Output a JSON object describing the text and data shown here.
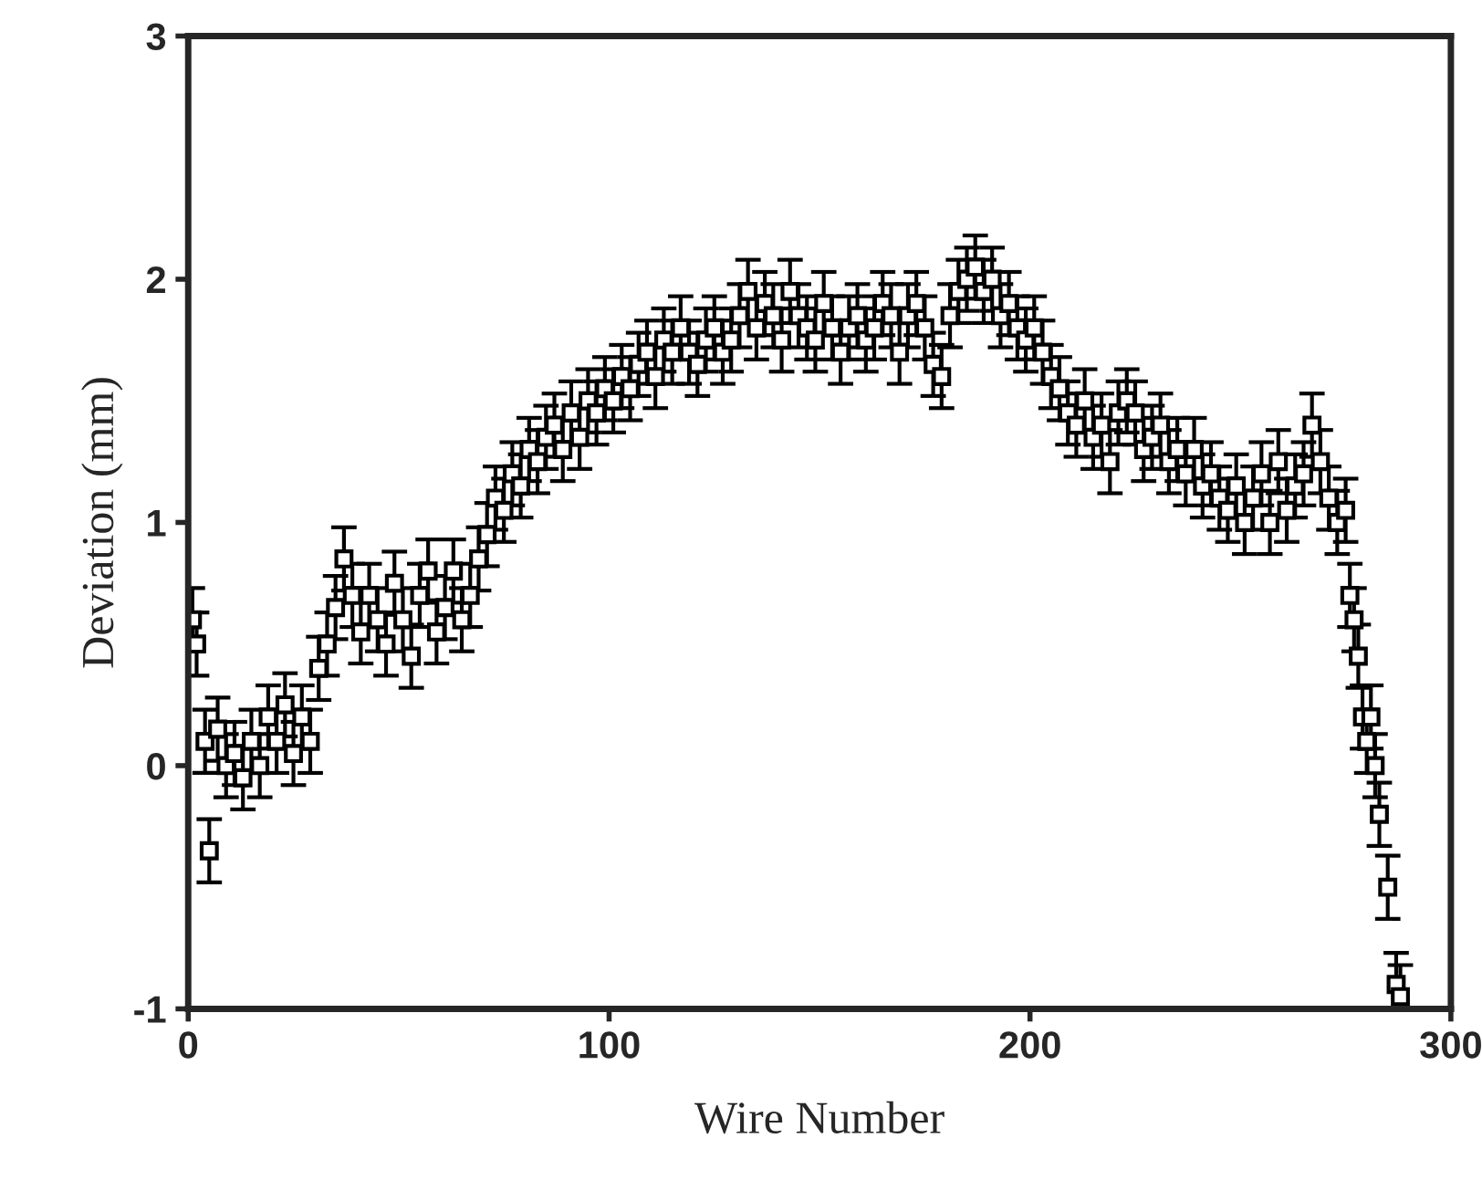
{
  "chart_data": {
    "type": "scatter",
    "xlabel": "Wire Number",
    "ylabel": "Deviation (mm)",
    "marker": "square",
    "xlim": [
      0,
      300
    ],
    "ylim": [
      -1,
      3
    ],
    "xticks": [
      0,
      100,
      200,
      300
    ],
    "yticks": [
      -1,
      0,
      1,
      2,
      3
    ],
    "x": [
      1,
      2,
      4,
      5,
      7,
      9,
      11,
      13,
      15,
      17,
      19,
      21,
      23,
      25,
      27,
      29,
      31,
      33,
      35,
      37,
      39,
      41,
      43,
      45,
      47,
      49,
      51,
      53,
      55,
      57,
      59,
      61,
      63,
      65,
      67,
      69,
      71,
      73,
      75,
      77,
      79,
      81,
      83,
      85,
      87,
      89,
      91,
      93,
      95,
      97,
      99,
      101,
      103,
      105,
      107,
      109,
      111,
      113,
      115,
      117,
      119,
      121,
      123,
      125,
      127,
      129,
      131,
      133,
      135,
      137,
      139,
      141,
      143,
      145,
      147,
      149,
      151,
      153,
      155,
      157,
      159,
      161,
      163,
      165,
      167,
      169,
      171,
      173,
      175,
      177,
      179,
      181,
      183,
      185,
      187,
      189,
      191,
      193,
      195,
      197,
      199,
      201,
      203,
      205,
      207,
      209,
      211,
      213,
      215,
      217,
      219,
      221,
      223,
      225,
      227,
      229,
      231,
      233,
      235,
      237,
      239,
      241,
      243,
      245,
      247,
      249,
      251,
      253,
      255,
      257,
      259,
      261,
      263,
      265,
      267,
      269,
      271,
      273,
      275,
      276,
      277,
      278,
      279,
      280,
      281,
      282,
      283,
      285,
      287,
      288
    ],
    "series": [
      {
        "color": "#000000",
        "values": [
          0.6,
          0.5,
          0.1,
          -0.35,
          0.15,
          0.0,
          0.05,
          -0.05,
          0.1,
          0.0,
          0.2,
          0.1,
          0.25,
          0.05,
          0.2,
          0.1,
          0.4,
          0.5,
          0.65,
          0.85,
          0.7,
          0.55,
          0.7,
          0.6,
          0.5,
          0.75,
          0.6,
          0.45,
          0.7,
          0.8,
          0.55,
          0.65,
          0.8,
          0.6,
          0.7,
          0.85,
          0.95,
          1.1,
          1.05,
          1.2,
          1.15,
          1.3,
          1.25,
          1.35,
          1.4,
          1.3,
          1.45,
          1.35,
          1.5,
          1.45,
          1.55,
          1.5,
          1.6,
          1.55,
          1.65,
          1.7,
          1.6,
          1.75,
          1.7,
          1.8,
          1.7,
          1.65,
          1.75,
          1.8,
          1.7,
          1.75,
          1.85,
          1.95,
          1.8,
          1.9,
          1.85,
          1.75,
          1.95,
          1.85,
          1.8,
          1.75,
          1.9,
          1.8,
          1.7,
          1.8,
          1.85,
          1.75,
          1.8,
          1.9,
          1.85,
          1.7,
          1.85,
          1.9,
          1.8,
          1.65,
          1.6,
          1.85,
          1.95,
          2.0,
          2.05,
          1.95,
          2.0,
          1.85,
          1.9,
          1.8,
          1.75,
          1.8,
          1.7,
          1.6,
          1.55,
          1.45,
          1.4,
          1.5,
          1.35,
          1.4,
          1.25,
          1.45,
          1.5,
          1.45,
          1.3,
          1.35,
          1.4,
          1.25,
          1.3,
          1.2,
          1.3,
          1.15,
          1.2,
          1.1,
          1.05,
          1.15,
          1.0,
          1.1,
          1.2,
          1.0,
          1.25,
          1.05,
          1.15,
          1.2,
          1.4,
          1.25,
          1.1,
          1.0,
          1.05,
          0.7,
          0.6,
          0.45,
          0.2,
          0.1,
          0.2,
          0.0,
          -0.2,
          -0.5,
          -0.9,
          -0.95
        ],
        "errors": [
          0.13,
          0.13,
          0.13,
          0.13,
          0.13,
          0.13,
          0.13,
          0.13,
          0.13,
          0.13,
          0.13,
          0.13,
          0.13,
          0.13,
          0.13,
          0.13,
          0.13,
          0.13,
          0.13,
          0.13,
          0.13,
          0.13,
          0.13,
          0.13,
          0.13,
          0.13,
          0.13,
          0.13,
          0.13,
          0.13,
          0.13,
          0.13,
          0.13,
          0.13,
          0.13,
          0.13,
          0.13,
          0.13,
          0.13,
          0.13,
          0.13,
          0.13,
          0.13,
          0.13,
          0.13,
          0.13,
          0.13,
          0.13,
          0.13,
          0.13,
          0.13,
          0.13,
          0.13,
          0.13,
          0.13,
          0.13,
          0.13,
          0.13,
          0.13,
          0.13,
          0.13,
          0.13,
          0.13,
          0.13,
          0.13,
          0.13,
          0.13,
          0.13,
          0.13,
          0.13,
          0.13,
          0.13,
          0.13,
          0.13,
          0.13,
          0.13,
          0.13,
          0.13,
          0.13,
          0.13,
          0.13,
          0.13,
          0.13,
          0.13,
          0.13,
          0.13,
          0.13,
          0.13,
          0.13,
          0.13,
          0.13,
          0.13,
          0.13,
          0.13,
          0.13,
          0.13,
          0.13,
          0.13,
          0.13,
          0.13,
          0.13,
          0.13,
          0.13,
          0.13,
          0.13,
          0.13,
          0.13,
          0.13,
          0.13,
          0.13,
          0.13,
          0.13,
          0.13,
          0.13,
          0.13,
          0.13,
          0.13,
          0.13,
          0.13,
          0.13,
          0.13,
          0.13,
          0.13,
          0.13,
          0.13,
          0.13,
          0.13,
          0.13,
          0.13,
          0.13,
          0.13,
          0.13,
          0.13,
          0.13,
          0.13,
          0.13,
          0.13,
          0.13,
          0.13,
          0.13,
          0.13,
          0.13,
          0.13,
          0.13,
          0.13,
          0.13,
          0.13,
          0.13,
          0.13,
          0.13
        ]
      }
    ]
  }
}
